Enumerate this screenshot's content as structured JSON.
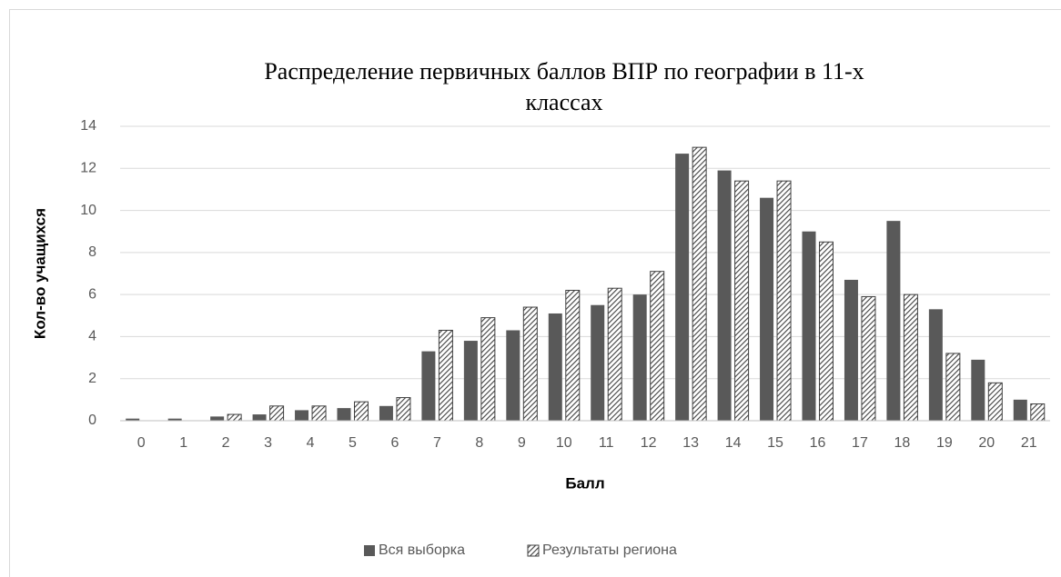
{
  "chart_data": {
    "type": "bar",
    "title": [
      "Распределение первичных баллов ВПР по географии в 11-х",
      "классах"
    ],
    "x_label": "Балл",
    "y_label": "Кол-во учащихся",
    "categories": [
      "0",
      "1",
      "2",
      "3",
      "4",
      "5",
      "6",
      "7",
      "8",
      "9",
      "10",
      "11",
      "12",
      "13",
      "14",
      "15",
      "16",
      "17",
      "18",
      "19",
      "20",
      "21"
    ],
    "series": [
      {
        "name": "Вся выборка",
        "color": "#595959",
        "values": [
          0.1,
          0.1,
          0.2,
          0.3,
          0.5,
          0.6,
          0.7,
          3.3,
          3.8,
          4.3,
          5.1,
          5.5,
          6.0,
          12.7,
          11.9,
          10.6,
          9.0,
          6.7,
          9.5,
          5.3,
          2.9,
          1.0
        ]
      },
      {
        "name": "Результаты региона",
        "color": "#404040",
        "pattern": "hatch",
        "values": [
          0,
          0,
          0.3,
          0.7,
          0.7,
          0.9,
          1.1,
          4.3,
          4.9,
          5.4,
          6.2,
          6.3,
          7.1,
          13.0,
          11.4,
          11.4,
          8.5,
          5.9,
          6.0,
          3.2,
          1.8,
          0.8
        ]
      }
    ],
    "ylim": [
      0,
      14
    ],
    "yticks": [
      0,
      2,
      4,
      6,
      8,
      10,
      12,
      14
    ],
    "grid": true,
    "legend": "bottom"
  }
}
